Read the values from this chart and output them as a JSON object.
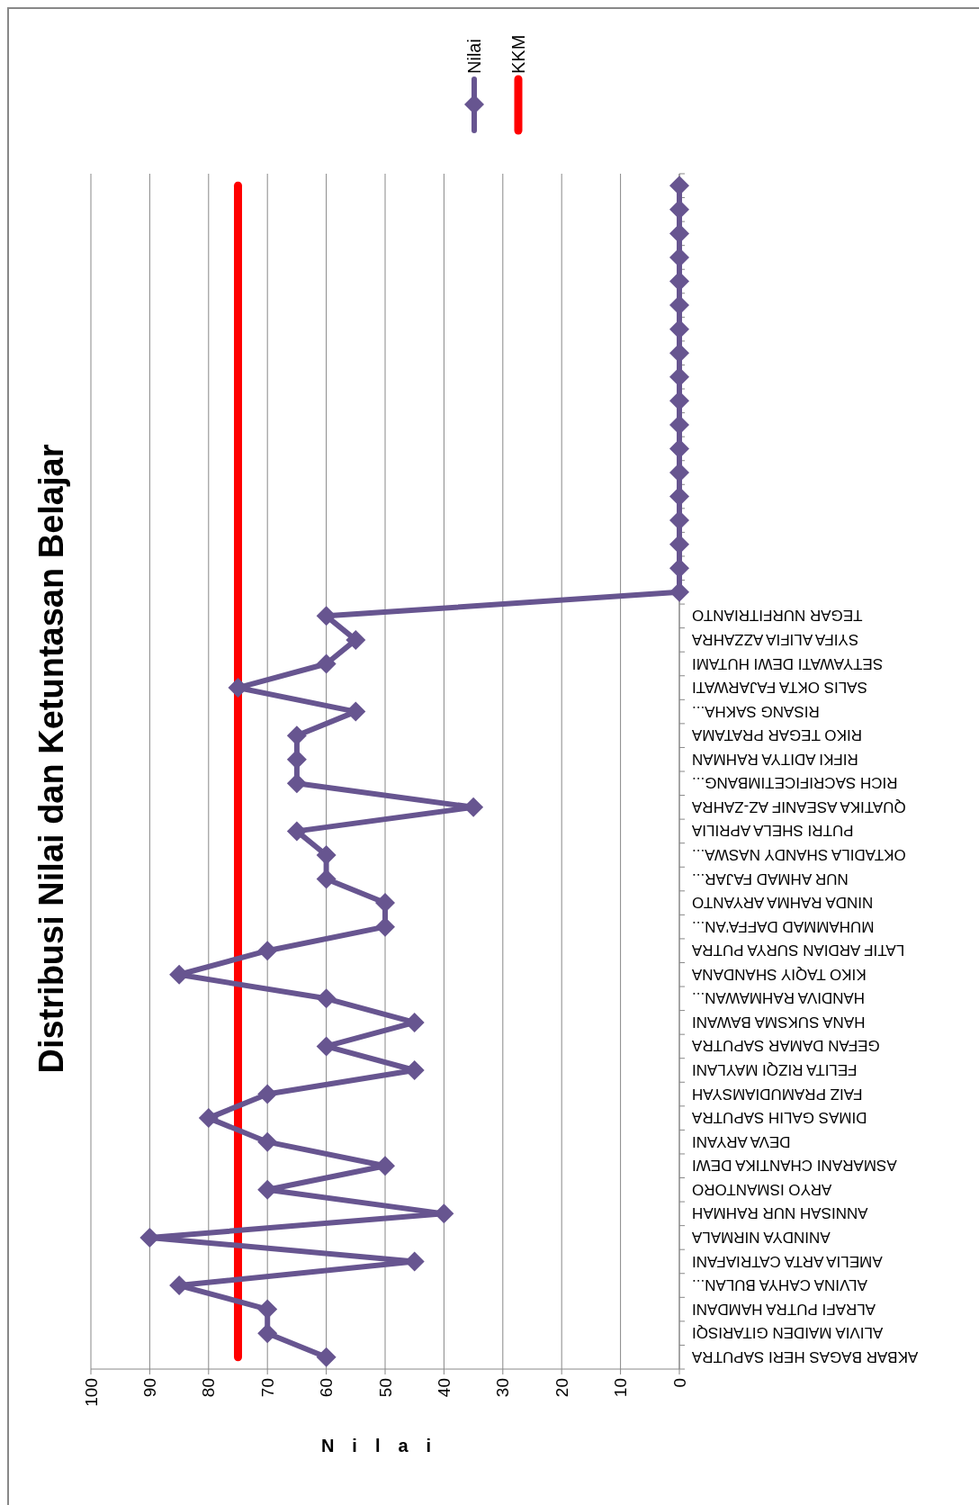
{
  "chart_data": {
    "type": "line",
    "orientation": "horizontal",
    "title": "Distribusi Nilai dan Ketuntasan Belajar",
    "xlabel": "Nilai",
    "categories": [
      null,
      null,
      null,
      null,
      null,
      null,
      null,
      null,
      null,
      null,
      null,
      null,
      null,
      null,
      null,
      null,
      null,
      null,
      "TEGAR NURFITRIANTO",
      "SYIFA ALIFIA AZZAHRA",
      "SETYAWATI DEWI HUTAMI",
      "SALIS OKTA FAJARWATI",
      "RISANG SAKHA...",
      "RIKO TEGAR PRATAMA",
      "RIFKI ADITYA RAHMAN",
      "RICH SACRIFICETIMBANG...",
      "QUATIKA ASEANIF AZ-ZAHRA",
      "PUTRI SHELA APRILIA",
      "OKTADILA SHANDY NASWA...",
      "NUR AHMAD FAJAR...",
      "NINDA RAHMA ARYANTO",
      "MUHAMMAD DAFFA'AN...",
      "LATIF ARDIAN SURYA PUTRA",
      "KIKO TAQIY SHANDANA",
      "HANDIVA RAHMAWAN...",
      "HANA SUKSMA BAWANI",
      "GEFAN DAMAR SAPUTRA",
      "FELITA RIZQI MAYLANI",
      "FAIZ PRAMUDIAMSYAH",
      "DIMAS GALIH SAPUTRA",
      "DEVA ARYANI",
      "ASMARANI CHANTIKA DEWI",
      "ARYO ISMANTORO",
      "ANNISAH NUR RAHMAH",
      "ANINDYA NIRMALA",
      "AMELIA ARTA CATRIAFANI",
      "ALVINA CAHYA BULAN...",
      "ALRAFI PUTRA HAMDANI",
      "ALIVIA MAIDEN GITARISQI",
      "AKBAR BAGAS HERI SAPUTRA"
    ],
    "series": [
      {
        "name": "Nilai",
        "color": "#675590",
        "marker": "diamond",
        "values": [
          0,
          0,
          0,
          0,
          0,
          0,
          0,
          0,
          0,
          0,
          0,
          0,
          0,
          0,
          0,
          0,
          0,
          0,
          60,
          55,
          60,
          75,
          55,
          65,
          65,
          65,
          35,
          65,
          60,
          60,
          50,
          50,
          70,
          85,
          60,
          45,
          60,
          45,
          70,
          80,
          70,
          50,
          70,
          40,
          90,
          45,
          85,
          70,
          70,
          60
        ]
      },
      {
        "name": "KKM",
        "color": "#ff0000",
        "marker": "none",
        "values": [
          75,
          75,
          75,
          75,
          75,
          75,
          75,
          75,
          75,
          75,
          75,
          75,
          75,
          75,
          75,
          75,
          75,
          75,
          75,
          75,
          75,
          75,
          75,
          75,
          75,
          75,
          75,
          75,
          75,
          75,
          75,
          75,
          75,
          75,
          75,
          75,
          75,
          75,
          75,
          75,
          75,
          75,
          75,
          75,
          75,
          75,
          75,
          75,
          75,
          75
        ]
      }
    ],
    "xlim": [
      100,
      0
    ],
    "xticks": [
      0,
      10,
      20,
      30,
      40,
      50,
      60,
      70,
      80,
      90,
      100
    ],
    "grid": "x",
    "legend": "top",
    "line_style": "solid"
  }
}
